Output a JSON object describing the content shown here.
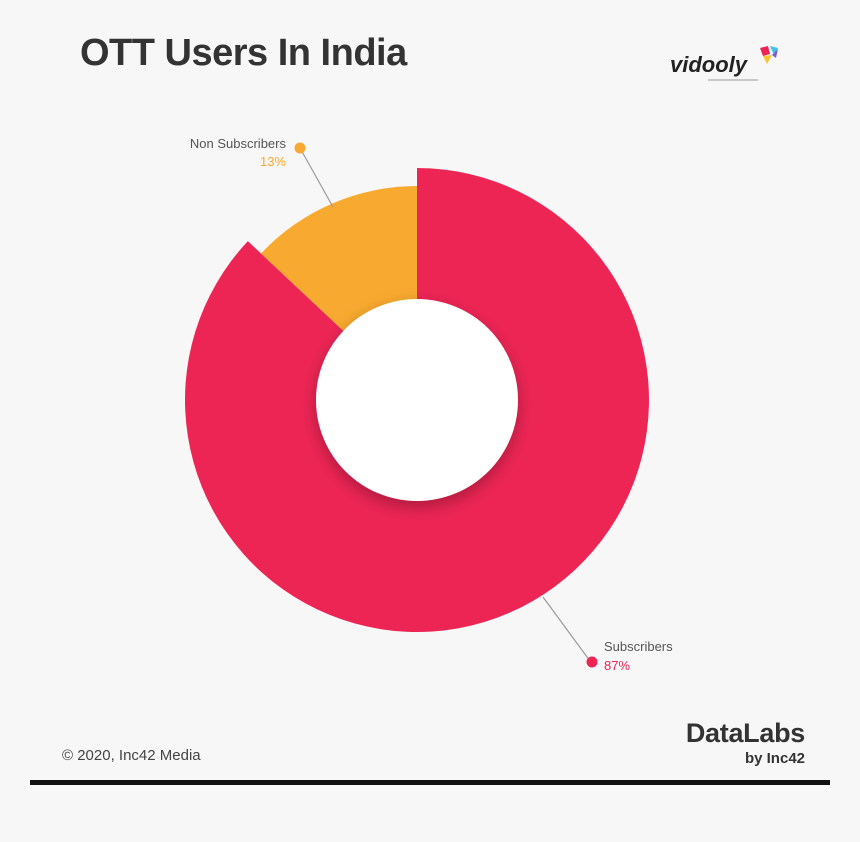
{
  "header": {
    "title": "OTT Users In India",
    "brand_logo": "vidooly"
  },
  "chart_data": {
    "type": "pie",
    "title": "OTT Users In India",
    "slices": [
      {
        "label": "Subscribers",
        "value": 87,
        "value_label": "87%",
        "color": "#ed2555"
      },
      {
        "label": "Non Subscribers",
        "value": 13,
        "value_label": "13%",
        "color": "#f8a92f"
      }
    ],
    "donut": true,
    "legend": "callouts"
  },
  "footer": {
    "copyright": "© 2020, Inc42 Media",
    "brand_main": "DataLabs",
    "brand_sub": "by Inc42"
  },
  "colors": {
    "background": "#f7f7f7",
    "title": "#333333",
    "subscribers": "#ed2555",
    "non_subscribers": "#f8a92f",
    "leader_line": "#9a9a9a"
  }
}
